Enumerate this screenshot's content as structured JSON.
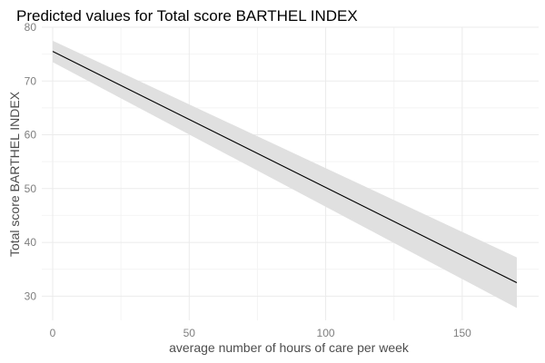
{
  "chart_data": {
    "type": "line",
    "title": "Predicted values for Total score BARTHEL INDEX",
    "xlabel": "average number of hours of care per week",
    "ylabel": "Total score BARTHEL INDEX",
    "xlim": [
      -4,
      178
    ],
    "ylim": [
      25.5,
      80
    ],
    "x_ticks": [
      0,
      50,
      100,
      150
    ],
    "y_ticks": [
      30,
      40,
      50,
      60,
      70,
      80
    ],
    "grid": true,
    "series": [
      {
        "x": [
          0,
          170
        ],
        "y": [
          75.5,
          32.5
        ],
        "ci_lower": [
          73.5,
          27.8
        ],
        "ci_upper": [
          77.5,
          37.2
        ]
      }
    ],
    "colors": {
      "line": "#000000",
      "ribbon": "#e0e0e0"
    }
  }
}
